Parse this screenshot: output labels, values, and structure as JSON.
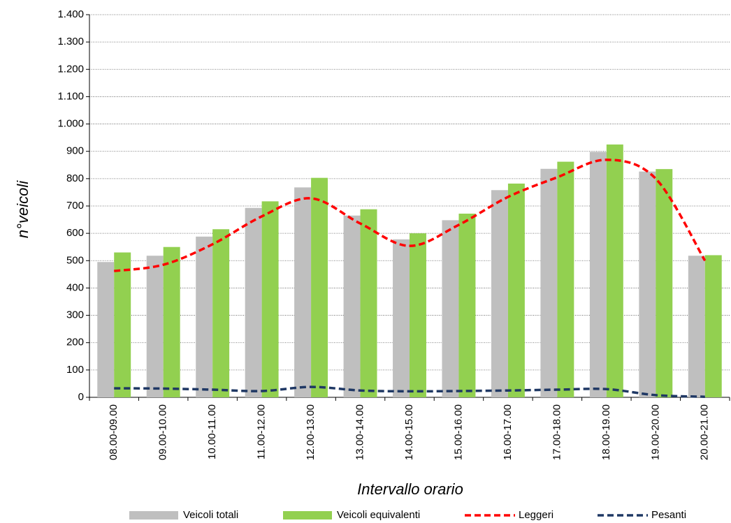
{
  "chart_data": {
    "type": "bar",
    "x_label": "Intervallo orario",
    "y_label": "n°veicoli",
    "categories": [
      "08.00-09.00",
      "09.00-10.00",
      "10.00-11.00",
      "11.00-12.00",
      "12.00-13.00",
      "13.00-14.00",
      "14.00-15.00",
      "15.00-16.00",
      "16.00-17.00",
      "17.00-18.00",
      "18.00-19.00",
      "19.00-20.00",
      "20.00-21.00"
    ],
    "series": [
      {
        "name": "Veicoli totali",
        "type": "bar",
        "color": "#bfbfbf",
        "values": [
          495,
          518,
          588,
          693,
          768,
          665,
          578,
          648,
          758,
          836,
          898,
          826,
          518
        ]
      },
      {
        "name": "Veicoli equivalenti",
        "type": "bar",
        "color": "#92d050",
        "values": [
          530,
          550,
          615,
          717,
          803,
          688,
          600,
          672,
          782,
          862,
          925,
          835,
          520
        ]
      },
      {
        "name": "Leggeri",
        "type": "line",
        "color": "#ff0000",
        "values": [
          462,
          485,
          560,
          662,
          728,
          636,
          554,
          631,
          733,
          805,
          869,
          800,
          500
        ]
      },
      {
        "name": "Pesanti",
        "type": "line",
        "color": "#1f3864",
        "values": [
          33,
          32,
          28,
          23,
          38,
          25,
          22,
          23,
          25,
          28,
          30,
          8,
          2
        ]
      }
    ],
    "ylim": [
      0,
      1400
    ],
    "yticks": [
      0,
      100,
      200,
      300,
      400,
      500,
      600,
      700,
      800,
      900,
      {
        "value": 1000,
        "label": "1.000"
      },
      {
        "value": 1100,
        "label": "1.100"
      },
      {
        "value": 1200,
        "label": "1.200"
      },
      {
        "value": 1300,
        "label": "1.300"
      },
      {
        "value": 1400,
        "label": "1.400"
      }
    ],
    "grid": true,
    "legend": "bottom"
  }
}
